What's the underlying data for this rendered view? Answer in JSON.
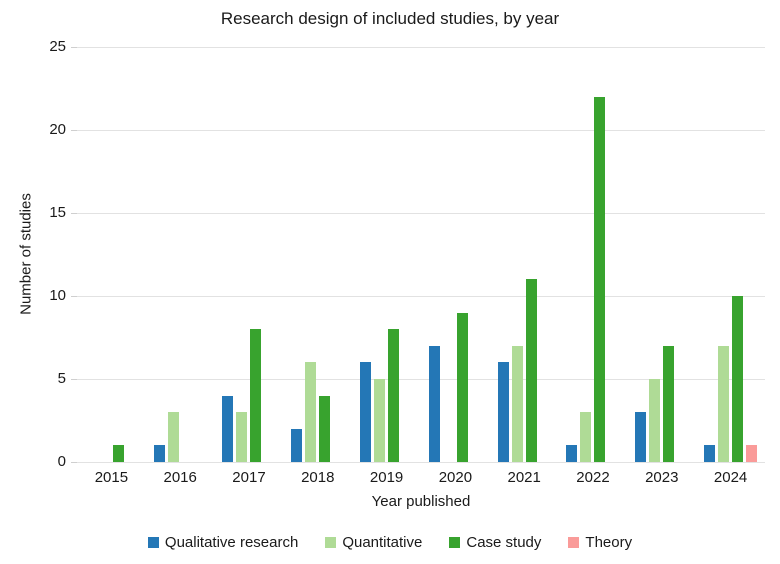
{
  "chart_data": {
    "type": "bar",
    "title": "Research design of included studies, by year",
    "xlabel": "Year published",
    "ylabel": "Number of studies",
    "categories": [
      "2015",
      "2016",
      "2017",
      "2018",
      "2019",
      "2020",
      "2021",
      "2022",
      "2023",
      "2024"
    ],
    "series": [
      {
        "name": "Qualitative research",
        "color": "#2477B6",
        "values": [
          0,
          1,
          4,
          2,
          6,
          7,
          6,
          1,
          3,
          1
        ]
      },
      {
        "name": "Quantitative",
        "color": "#AFDB96",
        "values": [
          0,
          3,
          3,
          6,
          5,
          0,
          7,
          3,
          5,
          7
        ]
      },
      {
        "name": "Case study",
        "color": "#38A32E",
        "values": [
          1,
          0,
          8,
          4,
          8,
          9,
          11,
          22,
          7,
          10
        ]
      },
      {
        "name": "Theory",
        "color": "#FA9B99",
        "values": [
          0,
          0,
          0,
          0,
          0,
          0,
          0,
          0,
          0,
          1
        ]
      }
    ],
    "ylim": [
      0,
      25
    ],
    "yticks": [
      0,
      5,
      10,
      15,
      20,
      25
    ],
    "grid": true,
    "legend_position": "bottom"
  }
}
